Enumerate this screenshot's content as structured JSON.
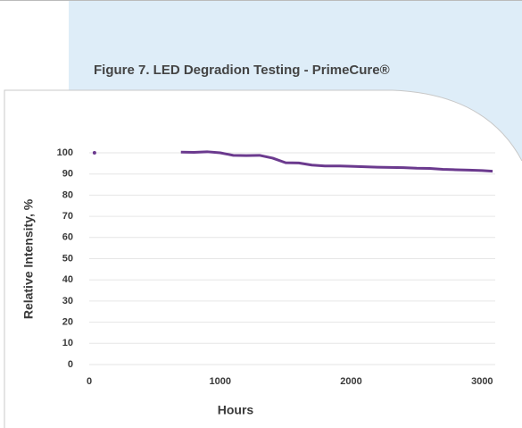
{
  "chart_data": {
    "type": "line",
    "title": "Figure 7. LED Degradion Testing - PrimeCure®",
    "xlabel": "Hours",
    "ylabel": "Relative Intensity, %",
    "x": [
      40,
      370,
      700,
      800,
      900,
      1000,
      1100,
      1200,
      1300,
      1400,
      1500,
      1600,
      1700,
      1800,
      1900,
      2000,
      2100,
      2200,
      2300,
      2400,
      2500,
      2600,
      2700,
      2800,
      2900,
      3000,
      3080
    ],
    "series": [
      {
        "color": "#6b3a8e",
        "values": [
          100,
          null,
          100.3,
          100.2,
          100.5,
          100,
          98.8,
          98.7,
          98.8,
          97.5,
          95.3,
          95.2,
          94.2,
          93.8,
          93.8,
          93.6,
          93.4,
          93.2,
          93.1,
          93.0,
          92.7,
          92.6,
          92.2,
          92.0,
          91.8,
          91.6,
          91.3
        ]
      }
    ],
    "xlim": [
      0,
      3100
    ],
    "xticks": [
      0,
      1000,
      2000,
      3000
    ],
    "ylim": [
      0,
      100
    ],
    "yticks": [
      0,
      10,
      20,
      30,
      40,
      50,
      60,
      70,
      80,
      90,
      100
    ],
    "grid": true
  }
}
